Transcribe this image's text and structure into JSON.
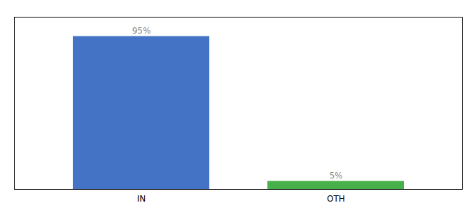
{
  "chart_data": {
    "type": "bar",
    "categories": [
      "IN",
      "OTH"
    ],
    "values": [
      95,
      5
    ],
    "value_labels": [
      "95%",
      "5%"
    ],
    "colors": [
      "#4472c4",
      "#48b04a"
    ],
    "ylim": [
      0,
      107
    ],
    "data_labels": true,
    "tick_labels": "x"
  }
}
